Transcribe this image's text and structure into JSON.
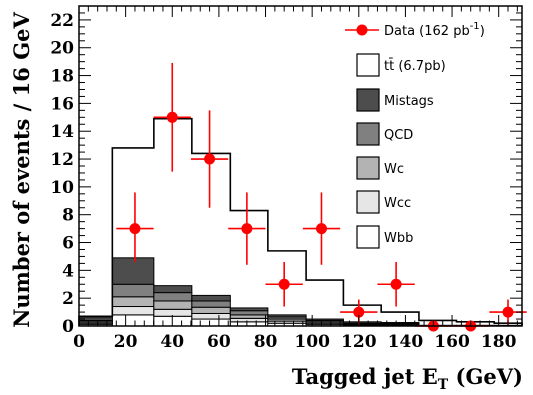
{
  "chart_data": {
    "type": "bar",
    "xlabel_main": "Tagged jet E",
    "xlabel_sub": "T",
    "xlabel_unit": " (GeV)",
    "ylabel": "Number of events / 16 GeV",
    "xlim": [
      0,
      190
    ],
    "ylim": [
      0,
      23
    ],
    "x_ticks": [
      0,
      20,
      40,
      60,
      80,
      100,
      120,
      140,
      160,
      180
    ],
    "y_ticks": [
      0,
      2,
      4,
      6,
      8,
      10,
      12,
      14,
      16,
      18,
      20,
      22
    ],
    "bin_edges": [
      0,
      14.3,
      32.1,
      48.4,
      64.9,
      81.0,
      97.4,
      113.4,
      129.6,
      145.8,
      161.9,
      178.1,
      190
    ],
    "stack_order": [
      "Wbb",
      "Wcc",
      "Wc",
      "QCD",
      "Mistags",
      "ttbar"
    ],
    "series": [
      {
        "name": "Wbb",
        "color": "#ffffff",
        "values": [
          0.1,
          0.8,
          0.7,
          0.5,
          0.3,
          0.2,
          0.1,
          0.05,
          0.05,
          0.0,
          0.0,
          0.0
        ]
      },
      {
        "name": "Wcc",
        "color": "#e6e6e6",
        "values": [
          0.1,
          0.6,
          0.5,
          0.4,
          0.25,
          0.15,
          0.1,
          0.05,
          0.05,
          0.0,
          0.0,
          0.0
        ]
      },
      {
        "name": "Wc",
        "color": "#b3b3b3",
        "values": [
          0.1,
          0.7,
          0.6,
          0.45,
          0.25,
          0.15,
          0.1,
          0.05,
          0.05,
          0.0,
          0.0,
          0.0
        ]
      },
      {
        "name": "QCD",
        "color": "#808080",
        "values": [
          0.1,
          0.9,
          0.6,
          0.45,
          0.3,
          0.15,
          0.1,
          0.05,
          0.05,
          0.0,
          0.0,
          0.0
        ]
      },
      {
        "name": "Mistags",
        "color": "#4d4d4d",
        "values": [
          0.2,
          1.9,
          0.5,
          0.4,
          0.2,
          0.15,
          0.1,
          0.1,
          0.05,
          0.05,
          0.05,
          0.05
        ]
      },
      {
        "name": "ttbar",
        "label": "tt̄ (6.7pb)",
        "color": "none",
        "values": [
          0.1,
          7.9,
          12.0,
          10.2,
          7.0,
          4.6,
          2.8,
          1.2,
          0.75,
          0.35,
          0.25,
          0.15
        ]
      }
    ],
    "data": {
      "name": "Data (162 pb",
      "name_sup": "-1",
      "name_end": ")",
      "color": "#ff0000",
      "points": [
        {
          "x": 24.0,
          "y": 7,
          "xerr": 8.0,
          "ylo": 4.6,
          "yhi": 9.6
        },
        {
          "x": 40.0,
          "y": 15,
          "xerr": 8.0,
          "ylo": 11.1,
          "yhi": 18.9
        },
        {
          "x": 56.0,
          "y": 12,
          "xerr": 8.0,
          "ylo": 8.5,
          "yhi": 15.5
        },
        {
          "x": 72.0,
          "y": 7,
          "xerr": 8.0,
          "ylo": 4.4,
          "yhi": 9.6
        },
        {
          "x": 88.0,
          "y": 3,
          "xerr": 8.0,
          "ylo": 1.4,
          "yhi": 4.6
        },
        {
          "x": 104.0,
          "y": 7,
          "xerr": 8.0,
          "ylo": 4.4,
          "yhi": 9.6
        },
        {
          "x": 120.0,
          "y": 1,
          "xerr": 8.0,
          "ylo": 0.1,
          "yhi": 1.9
        },
        {
          "x": 136.0,
          "y": 3,
          "xerr": 8.0,
          "ylo": 1.4,
          "yhi": 4.6
        },
        {
          "x": 152.0,
          "y": 0,
          "xerr": 8.0,
          "ylo": 0,
          "yhi": 0
        },
        {
          "x": 168.0,
          "y": 0,
          "xerr": 8.0,
          "ylo": 0,
          "yhi": 0
        },
        {
          "x": 184.0,
          "y": 1,
          "xerr": 8.0,
          "ylo": 0.1,
          "yhi": 1.9
        }
      ]
    },
    "legend": {
      "position": "top-right",
      "entries": [
        "Data (162 pb-1)",
        "tt̄ (6.7pb)",
        "Mistags",
        "QCD",
        "Wc",
        "Wcc",
        "Wbb"
      ]
    },
    "grid": false
  }
}
